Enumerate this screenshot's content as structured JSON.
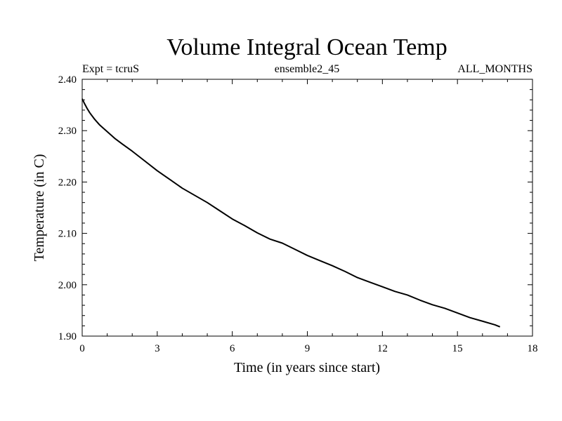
{
  "chart_data": {
    "type": "line",
    "title": "Volume Integral Ocean Temp",
    "subtitle_left": "Expt = tcruS",
    "subtitle_center": "ensemble2_45",
    "subtitle_right": "ALL_MONTHS",
    "xlabel": "Time (in years since start)",
    "ylabel": "Temperature (in C)",
    "xlim": [
      0,
      18
    ],
    "ylim": [
      1.9,
      2.4
    ],
    "xticks": [
      0,
      3,
      6,
      9,
      12,
      15,
      18
    ],
    "xtick_labels": [
      "0",
      "3",
      "6",
      "9",
      "12",
      "15",
      "18"
    ],
    "yticks": [
      1.9,
      2.0,
      2.1,
      2.2,
      2.3,
      2.4
    ],
    "ytick_labels": [
      "1.90",
      "2.00",
      "2.10",
      "2.20",
      "2.30",
      "2.40"
    ],
    "grid": false,
    "series": [
      {
        "color": "#000000",
        "x": [
          0.0,
          0.1,
          0.2,
          0.3,
          0.5,
          0.7,
          1.0,
          1.3,
          1.6,
          2.0,
          2.5,
          3.0,
          3.5,
          4.0,
          4.5,
          5.0,
          5.5,
          6.0,
          6.5,
          7.0,
          7.5,
          8.0,
          8.5,
          9.0,
          9.5,
          10.0,
          10.5,
          11.0,
          11.5,
          12.0,
          12.5,
          13.0,
          13.5,
          14.0,
          14.5,
          15.0,
          15.5,
          16.0,
          16.5,
          16.7
        ],
        "y": [
          2.362,
          2.352,
          2.343,
          2.335,
          2.322,
          2.311,
          2.298,
          2.285,
          2.274,
          2.26,
          2.241,
          2.222,
          2.205,
          2.188,
          2.174,
          2.16,
          2.144,
          2.128,
          2.115,
          2.101,
          2.089,
          2.081,
          2.069,
          2.057,
          2.047,
          2.037,
          2.026,
          2.014,
          2.005,
          1.996,
          1.987,
          1.98,
          1.97,
          1.961,
          1.954,
          1.945,
          1.936,
          1.929,
          1.922,
          1.918
        ]
      }
    ]
  }
}
